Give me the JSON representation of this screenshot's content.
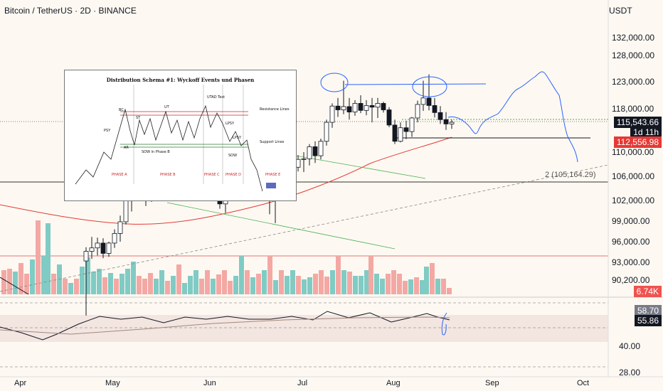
{
  "header": {
    "title": "Bitcoin / TetherUS · 2D · BINANCE",
    "currency": "USDT"
  },
  "price_axis": [
    {
      "label": "132,000.00",
      "price": 132000
    },
    {
      "label": "128,000.00",
      "price": 128000
    },
    {
      "label": "123,000.00",
      "price": 123000
    },
    {
      "label": "118,000.00",
      "price": 118000
    },
    {
      "label": "110,000.00",
      "price": 110000
    },
    {
      "label": "106,000.00",
      "price": 106000
    },
    {
      "label": "102,000.00",
      "price": 102000
    },
    {
      "label": "99,000.00",
      "price": 99000
    },
    {
      "label": "96,000.00",
      "price": 96000
    },
    {
      "label": "93,000.00",
      "price": 93000
    },
    {
      "label": "90,200.00",
      "price": 90200
    }
  ],
  "price_tags": {
    "current": "115,543.66",
    "countdown": "1d 11h",
    "ma": "112,556.98",
    "volume": "6.74K",
    "rsi": "58.70",
    "rsi_ma": "55.86"
  },
  "rsi_axis": [
    "40.00",
    "28.00"
  ],
  "fib_label": "2 (105,164.29)",
  "time_axis": [
    "Apr",
    "May",
    "Jun",
    "Jul",
    "Aug",
    "Sep",
    "Oct"
  ],
  "inset": {
    "title": "Distribution Schema #1: Wyckoff Events und Phasen",
    "events": [
      "PSY",
      "BC",
      "ST",
      "AR",
      "UT",
      "UTAD Test",
      "LPSY",
      "SOW",
      "SOW in Phase B"
    ],
    "lines": [
      "Resistance Lines",
      "Support Lines"
    ],
    "phases": [
      "PHASE A",
      "PHASE B",
      "PHASE C",
      "PHASE D",
      "PHASE E"
    ]
  },
  "colors": {
    "up": "#26a69a",
    "down": "#ef5350",
    "ma": "#e53935",
    "line_green": "#4caf50",
    "drawing_blue": "#2962ff",
    "background": "#fdf9f2"
  }
}
